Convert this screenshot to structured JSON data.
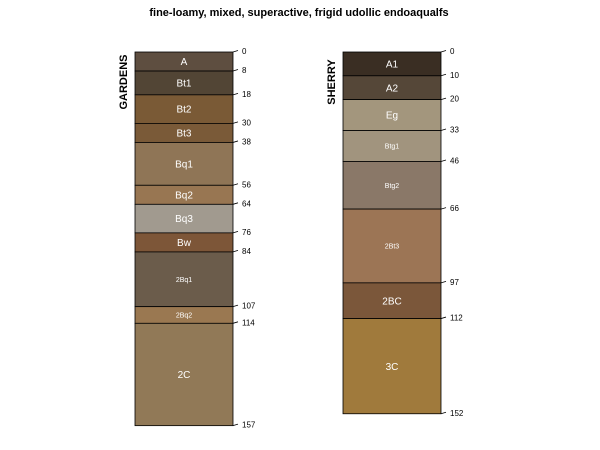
{
  "chart_data": {
    "type": "soil-profile-sketch",
    "title": "fine-loamy, mixed, superactive, frigid udollic endoaqualfs",
    "profiles": [
      {
        "name": "GARDENS",
        "bottom_depth": 157,
        "depth_labels": [
          0,
          8,
          18,
          30,
          38,
          56,
          64,
          76,
          84,
          107,
          114,
          157
        ],
        "horizons": [
          {
            "name": "A",
            "top": 0,
            "bottom": 8,
            "color": "#5e4e40"
          },
          {
            "name": "Bt1",
            "top": 8,
            "bottom": 18,
            "color": "#524535"
          },
          {
            "name": "Bt2",
            "top": 18,
            "bottom": 30,
            "color": "#7a5a36"
          },
          {
            "name": "Bt3",
            "top": 30,
            "bottom": 38,
            "color": "#7a5a38"
          },
          {
            "name": "Bq1",
            "top": 38,
            "bottom": 56,
            "color": "#8f7556"
          },
          {
            "name": "Bq2",
            "top": 56,
            "bottom": 64,
            "color": "#987652"
          },
          {
            "name": "Bq3",
            "top": 64,
            "bottom": 76,
            "color": "#a19a8f"
          },
          {
            "name": "Bw",
            "top": 76,
            "bottom": 84,
            "color": "#7d5638"
          },
          {
            "name": "2Bq1",
            "top": 84,
            "bottom": 107,
            "color": "#6b5c4b"
          },
          {
            "name": "2Bq2",
            "top": 107,
            "bottom": 114,
            "color": "#9a7851"
          },
          {
            "name": "2C",
            "top": 114,
            "bottom": 157,
            "color": "#917957"
          }
        ]
      },
      {
        "name": "SHERRY",
        "bottom_depth": 152,
        "depth_labels": [
          0,
          10,
          20,
          33,
          46,
          66,
          97,
          112,
          152
        ],
        "horizons": [
          {
            "name": "A1",
            "top": 0,
            "bottom": 10,
            "color": "#3a2e23"
          },
          {
            "name": "A2",
            "top": 10,
            "bottom": 20,
            "color": "#554738"
          },
          {
            "name": "Eg",
            "top": 20,
            "bottom": 33,
            "color": "#a3967d"
          },
          {
            "name": "Btg1",
            "top": 33,
            "bottom": 46,
            "color": "#a1947e"
          },
          {
            "name": "Btg2",
            "top": 46,
            "bottom": 66,
            "color": "#8a7868"
          },
          {
            "name": "2Bt3",
            "top": 66,
            "bottom": 97,
            "color": "#9c7555"
          },
          {
            "name": "2BC",
            "top": 97,
            "bottom": 112,
            "color": "#7b573a"
          },
          {
            "name": "3C",
            "top": 112,
            "bottom": 152,
            "color": "#a07a3c"
          }
        ]
      }
    ]
  }
}
